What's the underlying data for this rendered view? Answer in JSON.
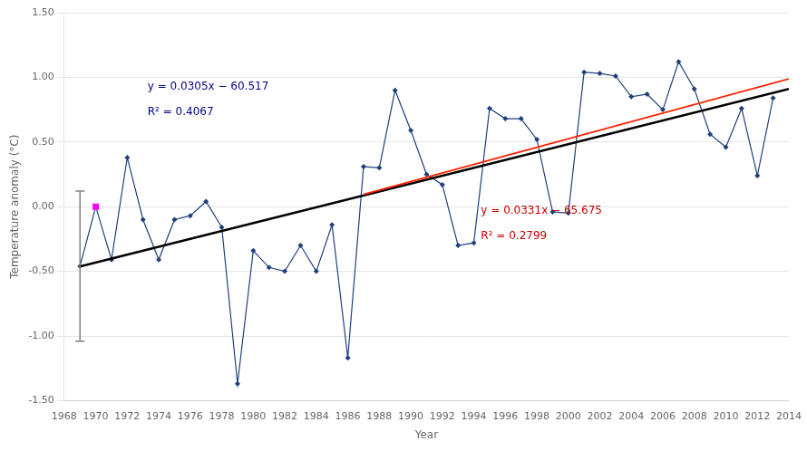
{
  "chart_data": {
    "type": "line",
    "x_label": "Year",
    "y_label": "Temperature anomaly (°C)",
    "xlim": [
      1968,
      2014
    ],
    "xticks": [
      1968,
      1970,
      1972,
      1974,
      1976,
      1978,
      1980,
      1982,
      1984,
      1986,
      1988,
      1990,
      1992,
      1994,
      1996,
      1998,
      2000,
      2002,
      2004,
      2006,
      2008,
      2010,
      2012,
      2014
    ],
    "ylim": [
      -1.5,
      1.5
    ],
    "yticks": [
      {
        "value": -1.5,
        "label": "-1.50"
      },
      {
        "value": -1.0,
        "label": "-1.00"
      },
      {
        "value": -0.5,
        "label": "-0.50"
      },
      {
        "value": 0,
        "label": "0.00"
      },
      {
        "value": 0.5,
        "label": "0.50"
      },
      {
        "value": 1.0,
        "label": "1.00"
      },
      {
        "value": 1.5,
        "label": "1.50"
      }
    ],
    "grid": "y",
    "series": [
      {
        "type": "line",
        "color": "#1f3f7a",
        "marker": "diamond",
        "x": [
          1969,
          1970,
          1971,
          1972,
          1973,
          1974,
          1975,
          1976,
          1977,
          1978,
          1979,
          1980,
          1981,
          1982,
          1983,
          1984,
          1985,
          1986,
          1987,
          1988,
          1989,
          1990,
          1991,
          1992,
          1993,
          1994,
          1995,
          1996,
          1997,
          1998,
          1999,
          2000,
          2001,
          2002,
          2003,
          2004,
          2005,
          2006,
          2007,
          2008,
          2009,
          2010,
          2011,
          2012,
          2013
        ],
        "values": [
          -0.46,
          0.0,
          -0.41,
          0.38,
          -0.1,
          -0.41,
          -0.1,
          -0.07,
          0.04,
          -0.16,
          -1.37,
          -0.34,
          -0.47,
          -0.5,
          -0.3,
          -0.5,
          -0.14,
          -1.17,
          0.31,
          0.3,
          0.9,
          0.59,
          0.25,
          0.17,
          -0.3,
          -0.28,
          0.76,
          0.68,
          0.68,
          0.52,
          -0.04,
          -0.05,
          1.04,
          1.03,
          1.01,
          0.85,
          0.87,
          0.75,
          1.12,
          0.91,
          0.56,
          0.46,
          0.76,
          0.24,
          0.84
        ]
      },
      {
        "type": "scatter",
        "color": "#ff00ff",
        "marker": "square",
        "x": [
          1970
        ],
        "values": [
          0.0
        ]
      },
      {
        "type": "errorbar",
        "color": "#808080",
        "x": [
          1969
        ],
        "values": [
          -0.46
        ],
        "error": [
          0.58
        ]
      },
      {
        "type": "line",
        "color": "#000000",
        "marker": "none",
        "x": [
          1969,
          2014
        ],
        "values": [
          -0.4625,
          0.91
        ]
      },
      {
        "type": "line",
        "color": "#ff2200",
        "marker": "none",
        "x": [
          1987,
          2014
        ],
        "values": [
          0.0947,
          0.9884
        ]
      }
    ],
    "annotations": [
      {
        "text": "y = 0.0305x − 60.517",
        "color": "#00008b"
      },
      {
        "text": "R² = 0.4067",
        "color": "#00008b"
      },
      {
        "text": "y = 0.0331x − 65.675",
        "color": "#cc0000"
      },
      {
        "text": "R² = 0.2799",
        "color": "#cc0000"
      }
    ]
  }
}
